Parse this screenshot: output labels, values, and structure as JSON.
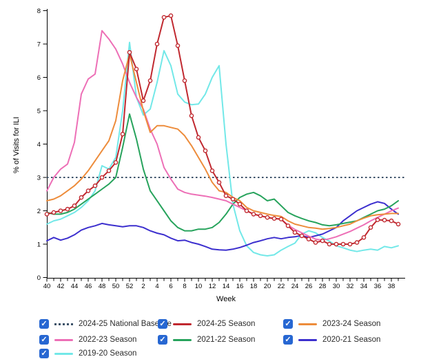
{
  "chart_data": {
    "type": "line",
    "title": "",
    "xlabel": "Week",
    "ylabel": "% of Visits for ILI",
    "ylim": [
      0,
      8
    ],
    "yticks": [
      0,
      1,
      2,
      3,
      4,
      5,
      6,
      7,
      8
    ],
    "x_tick_labels_every": 2,
    "grid": false,
    "legend_position": "bottom",
    "weeks": [
      "40",
      "41",
      "42",
      "43",
      "44",
      "45",
      "46",
      "47",
      "48",
      "49",
      "50",
      "51",
      "52",
      "1",
      "2",
      "3",
      "4",
      "5",
      "6",
      "7",
      "8",
      "9",
      "10",
      "11",
      "12",
      "13",
      "14",
      "15",
      "16",
      "17",
      "18",
      "19",
      "20",
      "21",
      "22",
      "23",
      "24",
      "25",
      "26",
      "27",
      "28",
      "29",
      "30",
      "31",
      "32",
      "33",
      "34",
      "35",
      "36",
      "37",
      "38",
      "39"
    ],
    "baseline": {
      "name": "2024-25 National Baseline",
      "value": 3,
      "color": "#3C5168"
    },
    "series": [
      {
        "name": "2019-20 Season",
        "color": "#72E8E8",
        "marker": false,
        "values": [
          1.6,
          1.7,
          1.75,
          1.85,
          1.95,
          2.1,
          2.3,
          2.6,
          3.35,
          3.25,
          3.6,
          5.0,
          7.05,
          5.4,
          4.87,
          5.05,
          5.85,
          6.8,
          6.35,
          5.5,
          5.26,
          5.18,
          5.2,
          5.5,
          6.0,
          6.35,
          4.0,
          2.2,
          1.4,
          0.95,
          0.75,
          0.68,
          0.65,
          0.68,
          0.82,
          0.93,
          1.03,
          1.3,
          1.4,
          1.34,
          1.2,
          1.09,
          0.95,
          0.89,
          0.82,
          0.78,
          0.82,
          0.85,
          0.82,
          0.93,
          0.89,
          0.95
        ]
      },
      {
        "name": "2020-21 Season",
        "color": "#3C2FCE",
        "marker": false,
        "values": [
          1.1,
          1.2,
          1.12,
          1.18,
          1.28,
          1.42,
          1.5,
          1.55,
          1.62,
          1.58,
          1.55,
          1.52,
          1.55,
          1.55,
          1.5,
          1.4,
          1.33,
          1.28,
          1.18,
          1.1,
          1.12,
          1.05,
          1.0,
          0.93,
          0.85,
          0.83,
          0.82,
          0.85,
          0.9,
          0.97,
          1.05,
          1.1,
          1.16,
          1.2,
          1.16,
          1.2,
          1.22,
          1.26,
          1.2,
          1.25,
          1.3,
          1.4,
          1.5,
          1.7,
          1.85,
          2.0,
          2.1,
          2.2,
          2.27,
          2.22,
          2.05,
          1.9
        ]
      },
      {
        "name": "2021-22 Season",
        "color": "#27A35C",
        "marker": false,
        "values": [
          1.95,
          1.9,
          1.9,
          1.95,
          2.05,
          2.2,
          2.35,
          2.5,
          2.65,
          2.8,
          3.0,
          3.9,
          4.9,
          4.15,
          3.25,
          2.6,
          2.3,
          2.0,
          1.7,
          1.5,
          1.4,
          1.4,
          1.45,
          1.45,
          1.5,
          1.65,
          1.9,
          2.2,
          2.4,
          2.5,
          2.55,
          2.45,
          2.3,
          2.35,
          2.15,
          1.95,
          1.85,
          1.77,
          1.7,
          1.65,
          1.58,
          1.55,
          1.58,
          1.62,
          1.66,
          1.7,
          1.8,
          1.9,
          2.0,
          2.05,
          2.15,
          2.3
        ]
      },
      {
        "name": "2022-23 Season",
        "color": "#ED6FB6",
        "marker": false,
        "values": [
          2.6,
          3.0,
          3.25,
          3.4,
          4.05,
          5.5,
          5.95,
          6.1,
          7.4,
          7.15,
          6.85,
          6.4,
          5.85,
          5.4,
          5.05,
          4.45,
          4.0,
          3.3,
          2.95,
          2.65,
          2.55,
          2.5,
          2.47,
          2.44,
          2.4,
          2.35,
          2.3,
          2.2,
          2.1,
          2.0,
          1.9,
          1.85,
          1.8,
          1.77,
          1.75,
          1.57,
          1.44,
          1.34,
          1.24,
          1.15,
          1.12,
          1.16,
          1.22,
          1.3,
          1.38,
          1.48,
          1.58,
          1.7,
          1.8,
          1.9,
          2.0,
          2.08
        ]
      },
      {
        "name": "2023-24 Season",
        "color": "#ED8C3B",
        "marker": false,
        "values": [
          2.3,
          2.35,
          2.45,
          2.6,
          2.75,
          2.95,
          3.2,
          3.5,
          3.8,
          4.1,
          4.7,
          5.9,
          6.7,
          5.85,
          5.0,
          4.35,
          4.55,
          4.55,
          4.5,
          4.45,
          4.25,
          3.95,
          3.6,
          3.25,
          2.85,
          2.6,
          2.55,
          2.4,
          2.3,
          2.1,
          2.0,
          1.95,
          1.9,
          1.86,
          1.83,
          1.7,
          1.6,
          1.55,
          1.5,
          1.48,
          1.45,
          1.47,
          1.5,
          1.55,
          1.6,
          1.7,
          1.78,
          1.85,
          1.88,
          1.9,
          1.92,
          1.92
        ]
      },
      {
        "name": "2024-25 Season",
        "color": "#C0282F",
        "marker": true,
        "values": [
          1.9,
          1.95,
          2.0,
          2.05,
          2.15,
          2.4,
          2.6,
          2.75,
          3.0,
          3.2,
          3.45,
          4.3,
          6.75,
          6.25,
          5.3,
          5.9,
          7.0,
          7.8,
          7.85,
          6.95,
          5.9,
          4.85,
          4.2,
          3.8,
          3.2,
          2.85,
          2.45,
          2.35,
          2.2,
          2.0,
          1.9,
          1.85,
          1.8,
          1.77,
          1.75,
          1.55,
          1.35,
          1.25,
          1.15,
          1.05,
          1.1,
          1.0,
          1.0,
          1.0,
          1.0,
          1.05,
          1.2,
          1.5,
          1.73,
          1.72,
          1.7,
          1.6
        ]
      }
    ]
  },
  "legend": {
    "checkbox_color": "#2767D2",
    "check_glyph": "✓",
    "items": [
      {
        "label": "2024-25 National Baseline",
        "color": "#3C5168",
        "style": "dotted",
        "checked": true,
        "row": 0,
        "col": 0
      },
      {
        "label": "2024-25 Season",
        "color": "#C0282F",
        "style": "solid",
        "checked": true,
        "row": 0,
        "col": 1
      },
      {
        "label": "2023-24 Season",
        "color": "#ED8C3B",
        "style": "solid",
        "checked": true,
        "row": 0,
        "col": 2
      },
      {
        "label": "2022-23 Season",
        "color": "#ED6FB6",
        "style": "solid",
        "checked": true,
        "row": 1,
        "col": 0
      },
      {
        "label": "2021-22 Season",
        "color": "#27A35C",
        "style": "solid",
        "checked": true,
        "row": 1,
        "col": 1
      },
      {
        "label": "2020-21 Season",
        "color": "#3C2FCE",
        "style": "solid",
        "checked": true,
        "row": 1,
        "col": 2
      },
      {
        "label": "2019-20 Season",
        "color": "#72E8E8",
        "style": "solid",
        "checked": true,
        "row": 2,
        "col": 0
      }
    ]
  }
}
